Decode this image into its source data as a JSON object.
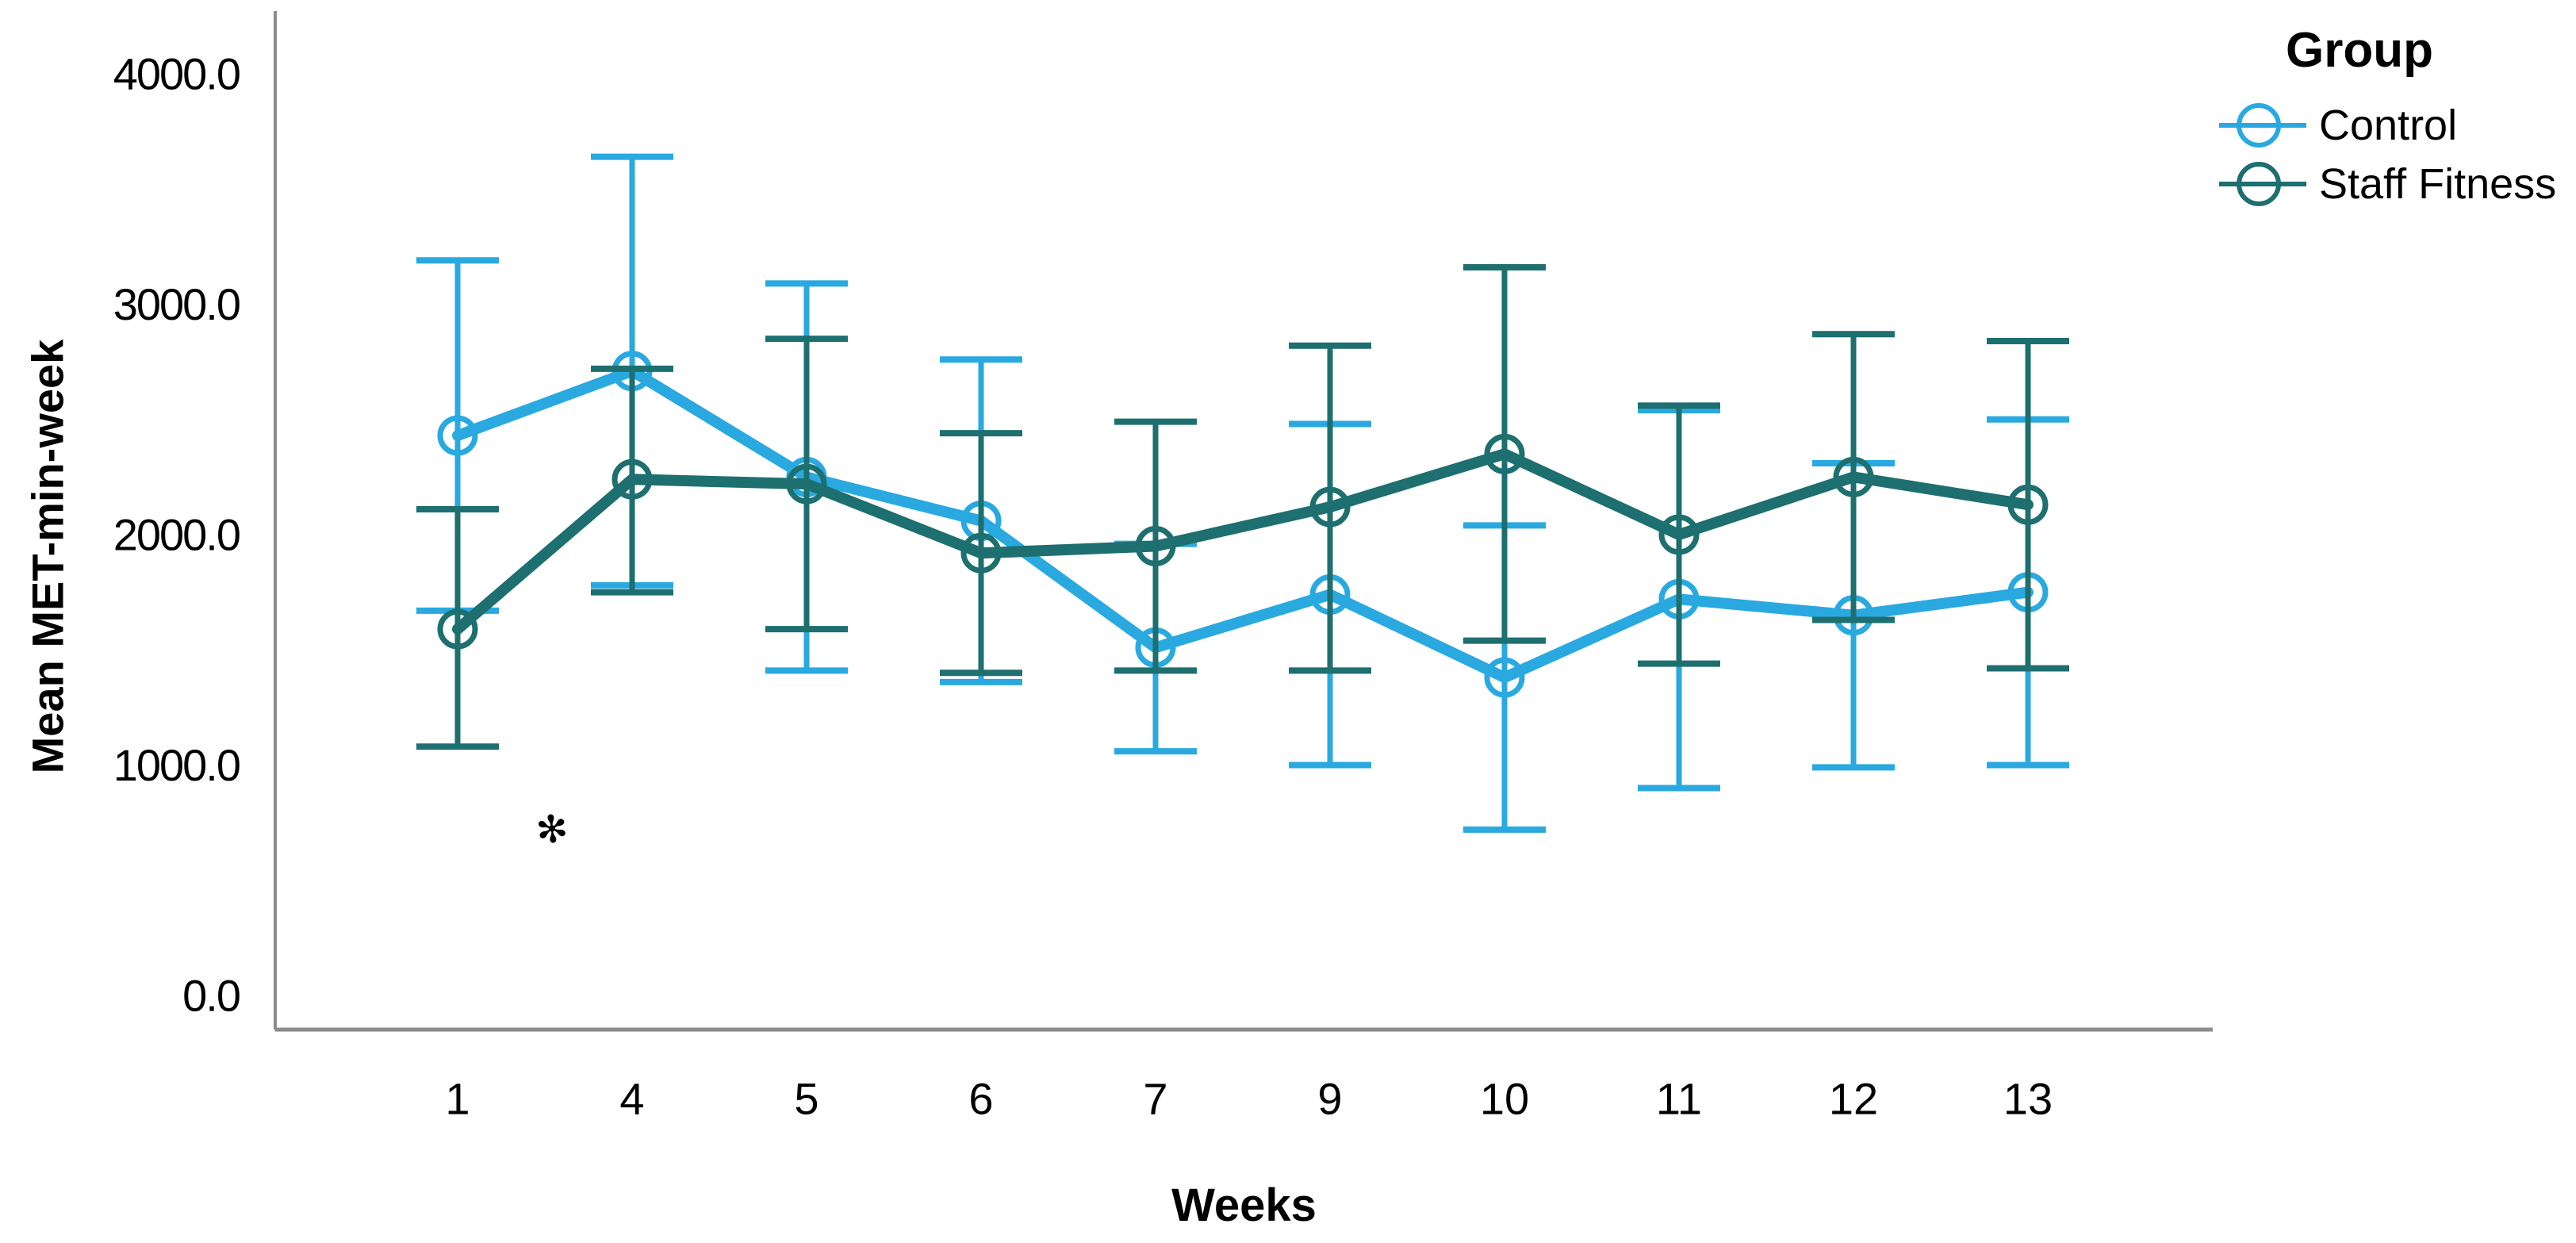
{
  "chart_data": {
    "type": "line",
    "title": "",
    "xlabel": "Weeks",
    "ylabel": "Mean MET-min-week",
    "categories": [
      "1",
      "4",
      "5",
      "6",
      "7",
      "9",
      "10",
      "11",
      "12",
      "13"
    ],
    "y_ticks": [
      0,
      1000,
      2000,
      3000,
      4000
    ],
    "y_tick_labels": [
      "0.0",
      "1000.0",
      "2000.0",
      "3000.0",
      "4000.0"
    ],
    "ylim": [
      0,
      4400
    ],
    "grid": false,
    "marker": "open-circle",
    "error_bars": true,
    "legend": {
      "title": "Group",
      "position": "top-right"
    },
    "axis_color": "#8c8c8c",
    "text_color": "#000000",
    "series": [
      {
        "name": "Control",
        "color": "#29A9E0",
        "values": [
          2430,
          2710,
          2250,
          2060,
          1510,
          1740,
          1380,
          1720,
          1650,
          1750
        ],
        "upper": [
          3190,
          3640,
          3090,
          2760,
          1960,
          2480,
          2040,
          2540,
          2310,
          2500
        ],
        "lower": [
          1670,
          1780,
          1410,
          1360,
          1060,
          1000,
          720,
          900,
          990,
          1000
        ]
      },
      {
        "name": "Staff Fitness",
        "color": "#1E6F6F",
        "values": [
          1590,
          2240,
          2220,
          1920,
          1950,
          2120,
          2350,
          2000,
          2250,
          2130
        ],
        "upper": [
          2110,
          2720,
          2850,
          2440,
          2490,
          2820,
          3160,
          2560,
          2870,
          2840
        ],
        "lower": [
          1080,
          1750,
          1590,
          1400,
          1410,
          1410,
          1540,
          1440,
          1630,
          1420
        ]
      }
    ],
    "annotation": {
      "glyph": "✻"
    }
  }
}
